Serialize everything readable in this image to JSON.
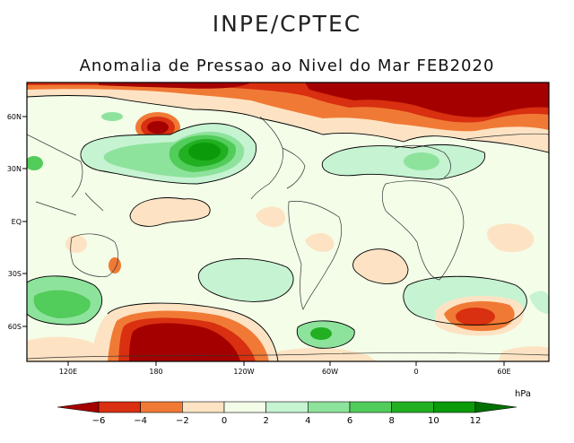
{
  "header": {
    "organization": "INPE/CPTEC",
    "map_title": "Anomalia de Pressao ao Nivel do Mar FEB2020"
  },
  "axes": {
    "lat_labels": [
      "60N",
      "30N",
      "EQ",
      "30S",
      "60S"
    ],
    "lon_labels": [
      "120E",
      "180",
      "120W",
      "60W",
      "0",
      "60E"
    ]
  },
  "colorbar": {
    "unit": "hPa",
    "tick_labels": [
      "-6",
      "-4",
      "-2",
      "0",
      "2",
      "4",
      "6",
      "8",
      "10",
      "12"
    ],
    "bins": [
      {
        "range": "< -6",
        "color": "#a50000"
      },
      {
        "range": "-6 to -4",
        "color": "#d83010"
      },
      {
        "range": "-4 to -2",
        "color": "#f07a35"
      },
      {
        "range": "-2 to 0",
        "color": "#fde3c3"
      },
      {
        "range": "0 to 2",
        "color": "#f3fde8"
      },
      {
        "range": "2 to 4",
        "color": "#c6f3d2"
      },
      {
        "range": "4 to 6",
        "color": "#8ee39c"
      },
      {
        "range": "6 to 8",
        "color": "#52cc5a"
      },
      {
        "range": "8 to 10",
        "color": "#22b022"
      },
      {
        "range": "10 to 12",
        "color": "#0a9a0a"
      },
      {
        "range": "> 12",
        "color": "#007000"
      }
    ]
  }
}
